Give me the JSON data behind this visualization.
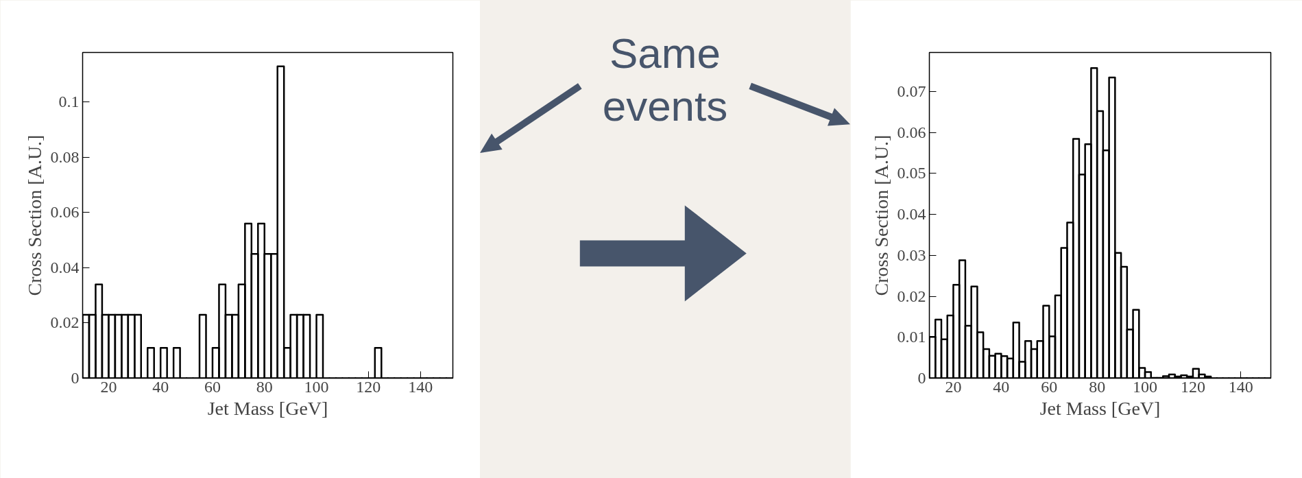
{
  "chart_data": [
    {
      "type": "histogram",
      "xlabel": "Jet Mass [GeV]",
      "ylabel": "Cross Section [A.U.]",
      "annotations": [
        "Same events"
      ],
      "bins": [
        10,
        12.5,
        15,
        17.5,
        20,
        22.5,
        25,
        27.5,
        30,
        32.5,
        35,
        37.5,
        40,
        42.5,
        45,
        47.5,
        50,
        52.5,
        55,
        57.5,
        60,
        62.5,
        65,
        67.5,
        70,
        72.5,
        75,
        77.5,
        80,
        82.5,
        85,
        87.5,
        90,
        92.5,
        95,
        97.5,
        100,
        102.5,
        105,
        107.5,
        110,
        112.5,
        115,
        117.5,
        120,
        122.5,
        125,
        127.5,
        130,
        132.5,
        135,
        137.5,
        140,
        142.5,
        145,
        147.5,
        150,
        152.5
      ],
      "values": [
        0.023,
        0.023,
        0.034,
        0.023,
        0.023,
        0.023,
        0.023,
        0.023,
        0.023,
        0,
        0.011,
        0,
        0.011,
        0,
        0.011,
        0,
        0,
        0,
        0.023,
        0,
        0.011,
        0.034,
        0.023,
        0.023,
        0.034,
        0.056,
        0.045,
        0.056,
        0.045,
        0.045,
        0.113,
        0.011,
        0.023,
        0.023,
        0.023,
        0,
        0.023,
        0,
        0,
        0,
        0,
        0,
        0,
        0,
        0,
        0.011,
        0,
        0,
        0,
        0,
        0,
        0,
        0,
        0,
        0,
        0,
        0
      ],
      "color": "#000000",
      "xlim": [
        10,
        152.5
      ],
      "ylim": [
        0,
        0.118
      ],
      "xticks": [
        20,
        40,
        60,
        80,
        100,
        120,
        140
      ],
      "yticks": [
        0,
        0.02,
        0.04,
        0.06,
        0.08,
        0.1
      ],
      "grid": false
    },
    {
      "type": "histogram",
      "xlabel": "Jet Mass [GeV]",
      "ylabel": "Cross Section [A.U.]",
      "bins": [
        10,
        12.5,
        15,
        17.5,
        20,
        22.5,
        25,
        27.5,
        30,
        32.5,
        35,
        37.5,
        40,
        42.5,
        45,
        47.5,
        50,
        52.5,
        55,
        57.5,
        60,
        62.5,
        65,
        67.5,
        70,
        72.5,
        75,
        77.5,
        80,
        82.5,
        85,
        87.5,
        90,
        92.5,
        95,
        97.5,
        100,
        102.5,
        105,
        107.5,
        110,
        112.5,
        115,
        117.5,
        120,
        122.5,
        125,
        127.5,
        130,
        132.5,
        135,
        137.5,
        140,
        142.5,
        145,
        147.5,
        150,
        152.5
      ],
      "values": [
        0.0101,
        0.0143,
        0.0095,
        0.0153,
        0.0228,
        0.0288,
        0.0128,
        0.0224,
        0.0112,
        0.0071,
        0.0055,
        0.006,
        0.0054,
        0.0048,
        0.0136,
        0.004,
        0.0091,
        0.0071,
        0.0091,
        0.0177,
        0.0102,
        0.0202,
        0.0318,
        0.038,
        0.0584,
        0.0497,
        0.0571,
        0.0757,
        0.0652,
        0.0556,
        0.0734,
        0.0306,
        0.0272,
        0.0119,
        0.0167,
        0.0025,
        0.0015,
        0.0001,
        0.0001,
        0.0005,
        0.0009,
        0.0004,
        0.0007,
        0.0004,
        0.0023,
        0.0009,
        0.0004,
        0,
        0,
        0,
        0,
        0,
        0,
        0,
        0,
        0,
        0
      ],
      "color": "#000000",
      "xlim": [
        10,
        152.5
      ],
      "ylim": [
        0,
        0.0795
      ],
      "xticks": [
        20,
        40,
        60,
        80,
        100,
        120,
        140
      ],
      "yticks": [
        0,
        0.01,
        0.02,
        0.03,
        0.04,
        0.05,
        0.06,
        0.07
      ],
      "grid": false
    }
  ]
}
